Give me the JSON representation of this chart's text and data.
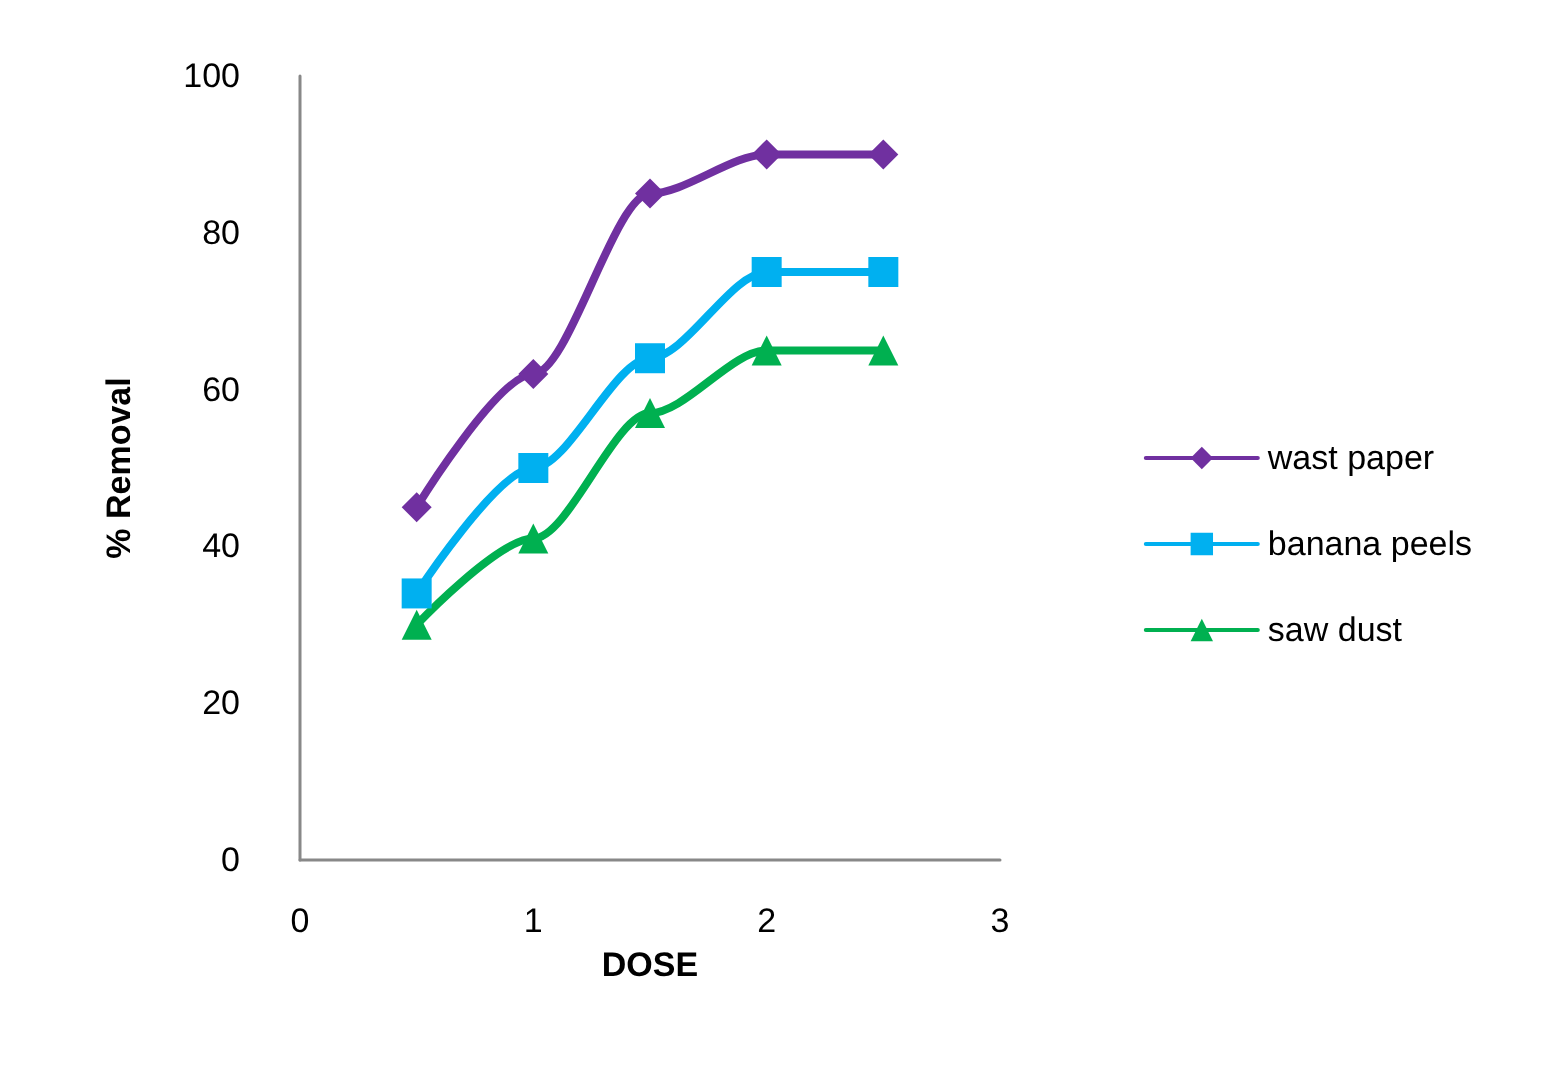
{
  "chart_data": {
    "type": "line",
    "xlabel": "DOSE",
    "ylabel": "% Removal",
    "x": [
      0.5,
      1,
      1.5,
      2,
      2.5
    ],
    "series": [
      {
        "name": "wast paper",
        "color": "#7030a0",
        "marker": "diamond",
        "values": [
          45,
          62,
          85,
          90,
          90
        ]
      },
      {
        "name": "banana peels",
        "color": "#00b0f0",
        "marker": "square",
        "values": [
          34,
          50,
          64,
          75,
          75
        ]
      },
      {
        "name": "saw dust",
        "color": "#00b050",
        "marker": "triangle",
        "values": [
          30,
          41,
          57,
          65,
          65
        ]
      }
    ],
    "xlim": [
      0,
      3
    ],
    "xticks": [
      0,
      1,
      2,
      3
    ],
    "ylim": [
      0,
      100
    ],
    "yticks": [
      0,
      20,
      40,
      60,
      80,
      100
    ],
    "grid": false,
    "legend": "right",
    "line_style": "solid"
  }
}
